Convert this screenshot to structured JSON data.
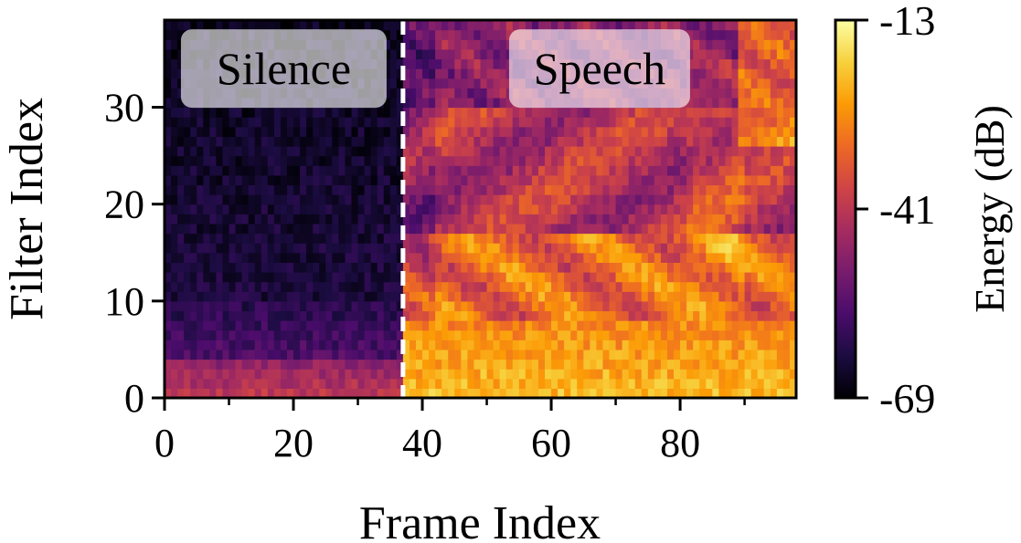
{
  "chart_data": {
    "type": "heatmap",
    "title": "",
    "xlabel": "Frame Index",
    "ylabel": "Filter Index",
    "x_range": [
      0,
      98
    ],
    "y_range": [
      0,
      39
    ],
    "x_ticks": [
      0,
      20,
      40,
      60,
      80
    ],
    "x_minor_ticks": [
      10,
      30,
      50,
      70,
      90
    ],
    "y_ticks": [
      0,
      10,
      20,
      30
    ],
    "n_frames": 98,
    "n_filters": 39,
    "colormap": "inferno",
    "colorbar": {
      "label": "Energy (dB)",
      "min": -69,
      "max": -13,
      "ticks": [
        -13,
        -41,
        -69
      ],
      "tick_labels": [
        "-13",
        "-41",
        "-69"
      ],
      "colors": [
        "#000004",
        "#1b0c41",
        "#4a0c6b",
        "#781c6d",
        "#a52c60",
        "#cf4446",
        "#ed6925",
        "#fb9b06",
        "#f7d13d",
        "#fcffa4"
      ]
    },
    "boundary_frame": 37,
    "boundary_style": "white dashed",
    "annotations": [
      {
        "text": "Silence",
        "x": 18.5,
        "y": 34
      },
      {
        "text": "Speech",
        "x": 67.5,
        "y": 34
      }
    ],
    "regions": {
      "silence": {
        "frames": [
          0,
          37
        ],
        "low_band_filters": [
          0,
          3
        ],
        "low_band_db": -47,
        "background_db": -63
      },
      "speech": {
        "frames": [
          37,
          98
        ],
        "low_band_filters": [
          0,
          7
        ],
        "low_band_db": -22,
        "mid_band_db": -38,
        "high_band_db": -48
      }
    }
  }
}
